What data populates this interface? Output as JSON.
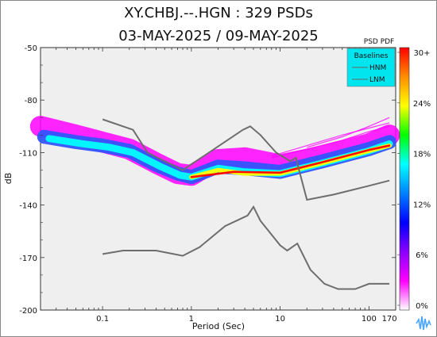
{
  "chart_data": {
    "type": "heatmap",
    "title": "XY.CHBJ.--.HGN : 329 PSDs",
    "subtitle": "03-MAY-2025 / 09-MAY-2025",
    "xlabel": "Period (Sec)",
    "ylabel": "dB",
    "x_scale": "log",
    "xlim": [
      0.02,
      200
    ],
    "ylim": [
      -200,
      -50
    ],
    "x_ticks": [
      {
        "value": 0.1,
        "label": "0.1"
      },
      {
        "value": 1,
        "label": "1"
      },
      {
        "value": 10,
        "label": "10"
      },
      {
        "value": 100,
        "label": "100"
      },
      {
        "value": 170,
        "label": "170"
      }
    ],
    "y_ticks": [
      {
        "value": -50,
        "label": "-50"
      },
      {
        "value": -80,
        "label": "-80"
      },
      {
        "value": -110,
        "label": "-110"
      },
      {
        "value": -140,
        "label": "-140"
      },
      {
        "value": -170,
        "label": "-170"
      },
      {
        "value": -200,
        "label": "-200"
      }
    ],
    "colorbar": {
      "title": "PSD PDF",
      "labels": [
        "30+",
        "24%",
        "18%",
        "12%",
        "6%",
        "0%"
      ],
      "colors": [
        "#ff0000",
        "#ff8c00",
        "#ffff00",
        "#00ff00",
        "#00ffff",
        "#0080ff",
        "#0000ff",
        "#8a00ff",
        "#ff00ff",
        "#ffffff"
      ]
    },
    "legend": {
      "title": "Baselines",
      "placement": "top-right",
      "items": [
        "HNM",
        "LNM"
      ],
      "bg": "#00e5ee"
    },
    "series": [
      {
        "name": "HNM",
        "points": [
          [
            0.1,
            -91
          ],
          [
            0.22,
            -97
          ],
          [
            0.32,
            -110
          ],
          [
            0.8,
            -120
          ],
          [
            3.8,
            -97
          ],
          [
            4.6,
            -95
          ],
          [
            6,
            -100
          ],
          [
            9,
            -110
          ],
          [
            13,
            -115
          ],
          [
            15,
            -113
          ],
          [
            20,
            -137
          ],
          [
            40,
            -134
          ],
          [
            100,
            -129
          ],
          [
            170,
            -126
          ]
        ]
      },
      {
        "name": "LNM",
        "points": [
          [
            0.1,
            -168
          ],
          [
            0.17,
            -166
          ],
          [
            0.4,
            -166
          ],
          [
            0.8,
            -169
          ],
          [
            1.24,
            -164
          ],
          [
            2.4,
            -152
          ],
          [
            4.3,
            -146
          ],
          [
            5,
            -141
          ],
          [
            6,
            -149
          ],
          [
            10,
            -163
          ],
          [
            12,
            -166
          ],
          [
            15.6,
            -162
          ],
          [
            21.9,
            -177
          ],
          [
            31.6,
            -185
          ],
          [
            45,
            -188
          ],
          [
            70,
            -188
          ],
          [
            100,
            -185
          ],
          [
            170,
            -185
          ]
        ]
      }
    ],
    "density_bands": [
      {
        "color": "#ff00ff",
        "points": [
          [
            0.02,
            -95
          ],
          [
            0.05,
            -100
          ],
          [
            0.1,
            -104
          ],
          [
            0.2,
            -108
          ],
          [
            0.4,
            -116
          ],
          [
            0.7,
            -122
          ],
          [
            1,
            -123
          ],
          [
            2,
            -114
          ],
          [
            4,
            -113
          ],
          [
            10,
            -117
          ],
          [
            30,
            -112
          ],
          [
            100,
            -105
          ],
          [
            170,
            -100
          ]
        ],
        "width": 12
      },
      {
        "color": "#3355ff",
        "points": [
          [
            0.022,
            -101
          ],
          [
            0.05,
            -104
          ],
          [
            0.1,
            -106
          ],
          [
            0.2,
            -109
          ],
          [
            0.4,
            -117
          ],
          [
            0.7,
            -122
          ],
          [
            1,
            -124
          ],
          [
            2,
            -118
          ],
          [
            4,
            -119
          ],
          [
            10,
            -121
          ],
          [
            30,
            -115
          ],
          [
            100,
            -108
          ],
          [
            170,
            -104
          ]
        ],
        "width": 8
      },
      {
        "color": "#00ffff",
        "points": [
          [
            0.025,
            -102
          ],
          [
            0.06,
            -105
          ],
          [
            0.12,
            -107
          ],
          [
            0.22,
            -110
          ],
          [
            0.45,
            -118
          ],
          [
            0.75,
            -123
          ],
          [
            1,
            -124
          ],
          [
            2,
            -119
          ],
          [
            4,
            -121
          ],
          [
            10,
            -122
          ],
          [
            30,
            -116
          ],
          [
            100,
            -109
          ],
          [
            170,
            -105
          ]
        ],
        "width": 4
      },
      {
        "color": "#ffff00",
        "points": [
          [
            1,
            -124
          ],
          [
            2,
            -120
          ],
          [
            4,
            -122
          ],
          [
            10,
            -122
          ],
          [
            30,
            -116
          ],
          [
            100,
            -109
          ],
          [
            170,
            -106
          ]
        ],
        "width": 2.5
      },
      {
        "color": "#ff0000",
        "points": [
          [
            1,
            -124
          ],
          [
            3,
            -121
          ],
          [
            10,
            -121.5
          ],
          [
            30,
            -115.5
          ],
          [
            100,
            -108.5
          ],
          [
            170,
            -106
          ]
        ],
        "width": 1.2
      }
    ],
    "scatter_lines": [
      {
        "color": "#ff00ff",
        "points": [
          [
            8,
            -113
          ],
          [
            20,
            -108
          ],
          [
            50,
            -103
          ],
          [
            100,
            -98
          ],
          [
            170,
            -95
          ]
        ]
      },
      {
        "color": "#ff00ff",
        "points": [
          [
            8,
            -112
          ],
          [
            20,
            -106
          ],
          [
            50,
            -100
          ],
          [
            100,
            -96
          ],
          [
            170,
            -93
          ]
        ]
      },
      {
        "color": "#ff00ff",
        "points": [
          [
            20,
            -107
          ],
          [
            50,
            -101
          ],
          [
            100,
            -95
          ],
          [
            170,
            -90
          ]
        ]
      }
    ]
  }
}
